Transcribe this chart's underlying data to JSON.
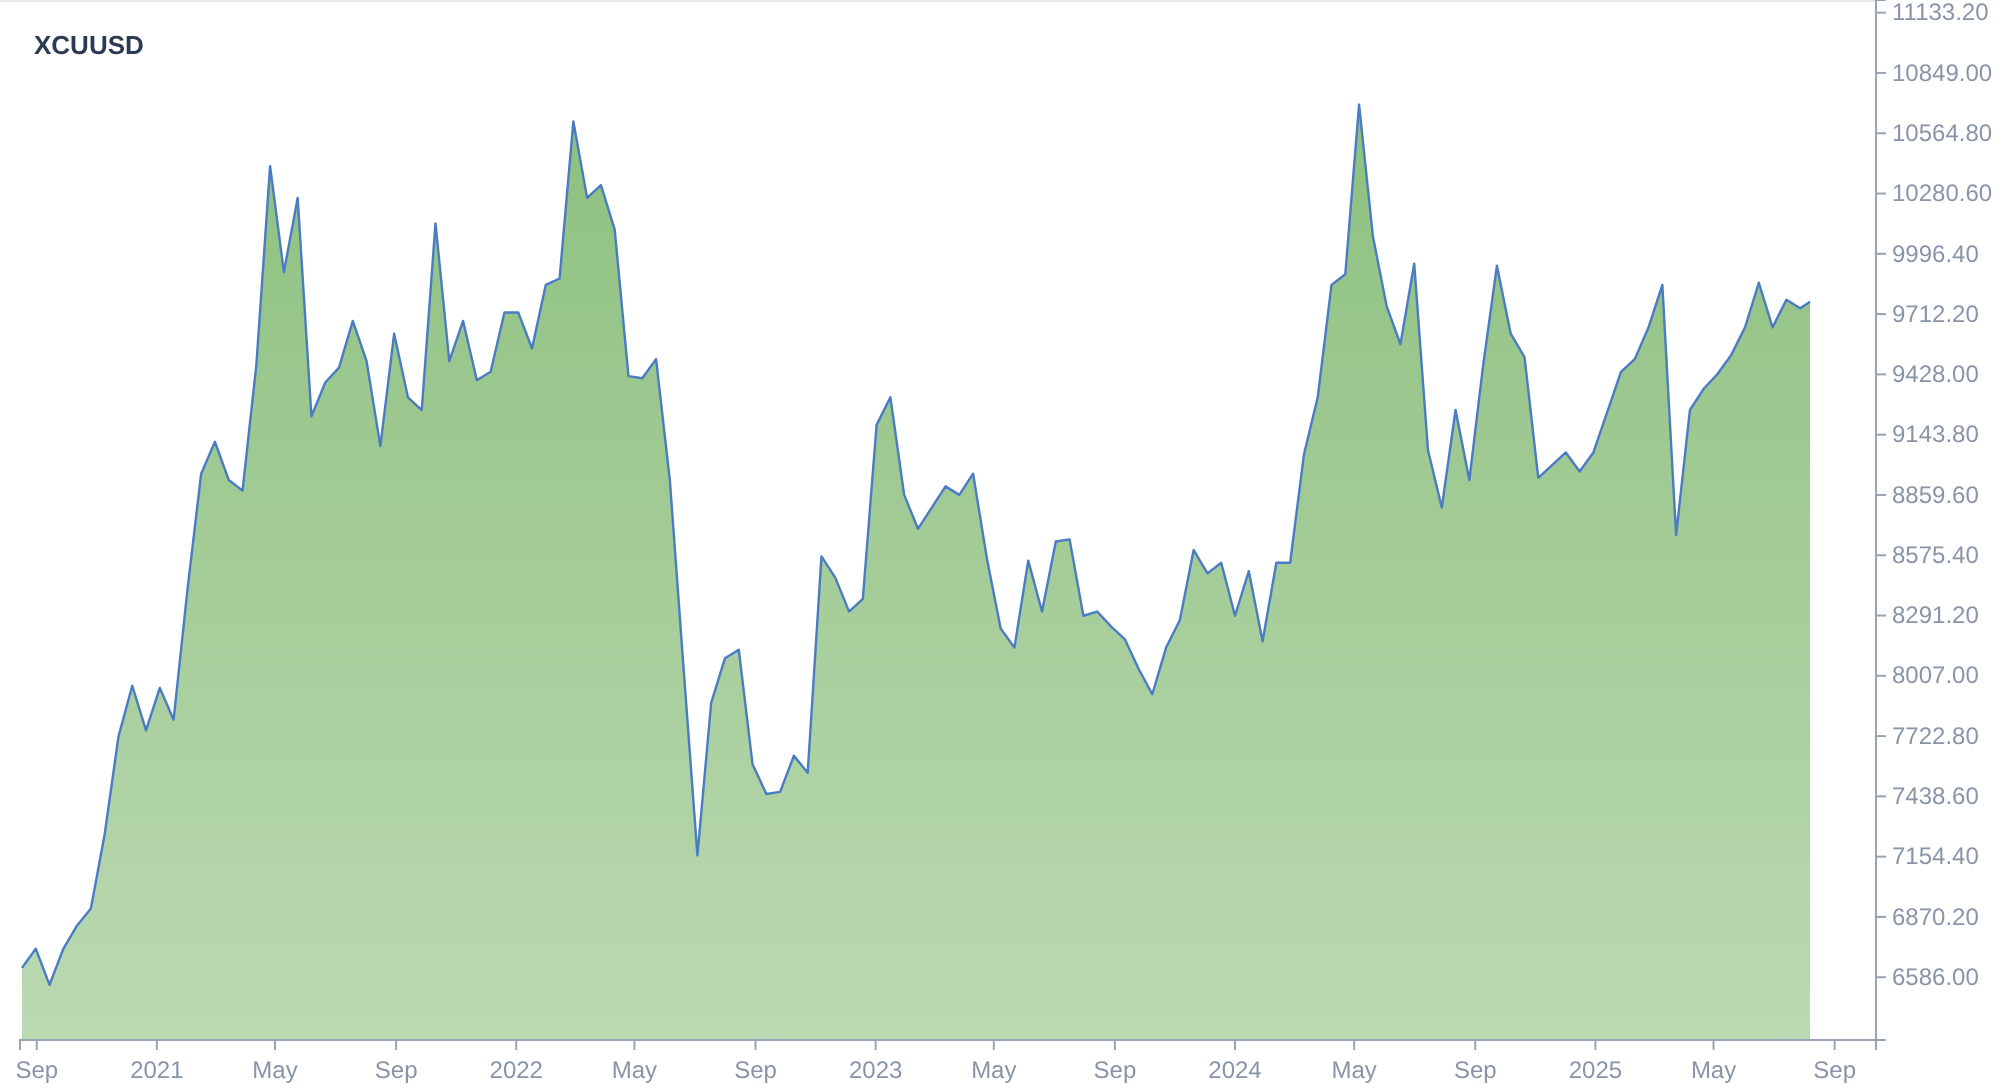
{
  "chart_data": {
    "type": "area",
    "title": "XCUUSD",
    "x": [
      "2020-08-17",
      "2020-08-31",
      "2020-09-14",
      "2020-09-28",
      "2020-10-12",
      "2020-10-26",
      "2020-11-09",
      "2020-11-23",
      "2020-12-07",
      "2020-12-21",
      "2021-01-04",
      "2021-01-18",
      "2021-02-01",
      "2021-02-15",
      "2021-03-01",
      "2021-03-15",
      "2021-03-29",
      "2021-04-12",
      "2021-04-26",
      "2021-05-10",
      "2021-05-24",
      "2021-06-07",
      "2021-06-21",
      "2021-07-05",
      "2021-07-19",
      "2021-08-02",
      "2021-08-16",
      "2021-08-30",
      "2021-09-13",
      "2021-09-27",
      "2021-10-11",
      "2021-10-25",
      "2021-11-08",
      "2021-11-22",
      "2021-12-06",
      "2021-12-20",
      "2022-01-03",
      "2022-01-17",
      "2022-01-31",
      "2022-02-14",
      "2022-02-28",
      "2022-03-14",
      "2022-03-28",
      "2022-04-11",
      "2022-04-25",
      "2022-05-09",
      "2022-05-23",
      "2022-06-06",
      "2022-06-20",
      "2022-07-04",
      "2022-07-18",
      "2022-08-01",
      "2022-08-15",
      "2022-08-29",
      "2022-09-12",
      "2022-09-26",
      "2022-10-10",
      "2022-10-24",
      "2022-11-07",
      "2022-11-21",
      "2022-12-05",
      "2022-12-19",
      "2023-01-02",
      "2023-01-16",
      "2023-01-30",
      "2023-02-13",
      "2023-02-27",
      "2023-03-13",
      "2023-03-27",
      "2023-04-10",
      "2023-04-24",
      "2023-05-08",
      "2023-05-22",
      "2023-06-05",
      "2023-06-19",
      "2023-07-03",
      "2023-07-17",
      "2023-07-31",
      "2023-08-14",
      "2023-08-28",
      "2023-09-11",
      "2023-09-25",
      "2023-10-09",
      "2023-10-23",
      "2023-11-06",
      "2023-11-20",
      "2023-12-04",
      "2023-12-18",
      "2024-01-01",
      "2024-01-15",
      "2024-01-29",
      "2024-02-12",
      "2024-02-26",
      "2024-03-11",
      "2024-03-25",
      "2024-04-08",
      "2024-04-22",
      "2024-05-06",
      "2024-05-20",
      "2024-06-03",
      "2024-06-17",
      "2024-07-01",
      "2024-07-15",
      "2024-07-29",
      "2024-08-12",
      "2024-08-26",
      "2024-09-09",
      "2024-09-23",
      "2024-10-07",
      "2024-10-21",
      "2024-11-04",
      "2024-11-18",
      "2024-12-02",
      "2024-12-16",
      "2024-12-30",
      "2025-01-13",
      "2025-01-27",
      "2025-02-10",
      "2025-02-24",
      "2025-03-10",
      "2025-03-24",
      "2025-04-07",
      "2025-04-21",
      "2025-05-05",
      "2025-05-19",
      "2025-06-02",
      "2025-06-16",
      "2025-06-30",
      "2025-07-14",
      "2025-07-28",
      "2025-08-07"
    ],
    "series": [
      {
        "color": "#8dc07e",
        "values": [
          6630,
          6720,
          6550,
          6720,
          6830,
          6910,
          7260,
          7720,
          7960,
          7750,
          7950,
          7800,
          8410,
          8960,
          9110,
          8930,
          8880,
          9470,
          10410,
          9910,
          10260,
          9230,
          9390,
          9460,
          9680,
          9490,
          9090,
          9620,
          9320,
          9260,
          10140,
          9490,
          9680,
          9400,
          9440,
          9720,
          9720,
          9550,
          9850,
          9880,
          10620,
          10260,
          10320,
          10110,
          9420,
          9410,
          9500,
          8930,
          8040,
          7160,
          7880,
          8090,
          8130,
          7590,
          7450,
          7460,
          7630,
          7550,
          8570,
          8470,
          8310,
          8370,
          9190,
          9320,
          8860,
          8700,
          8800,
          8900,
          8860,
          8960,
          8560,
          8230,
          8140,
          8550,
          8310,
          8640,
          8650,
          8290,
          8310,
          8240,
          8180,
          8040,
          7920,
          8140,
          8270,
          8600,
          8490,
          8540,
          8290,
          8500,
          8170,
          8540,
          8540,
          9050,
          9320,
          9850,
          9900,
          10700,
          10080,
          9750,
          9570,
          9950,
          9070,
          8800,
          9260,
          8930,
          9470,
          9940,
          9620,
          9510,
          8940,
          9000,
          9060,
          8970,
          9060,
          9250,
          9440,
          9500,
          9650,
          9850,
          8670,
          9260,
          9360,
          9430,
          9520,
          9650,
          9860,
          9650,
          9780,
          9740,
          9770
        ]
      }
    ],
    "xlim": [
      "2020-08-15",
      "2025-10-13"
    ],
    "xticks": [
      {
        "value": "2020-09-01",
        "label": "Sep"
      },
      {
        "value": "2021-01-01",
        "label": "2021"
      },
      {
        "value": "2021-05-01",
        "label": "May"
      },
      {
        "value": "2021-09-01",
        "label": "Sep"
      },
      {
        "value": "2022-01-01",
        "label": "2022"
      },
      {
        "value": "2022-05-01",
        "label": "May"
      },
      {
        "value": "2022-09-01",
        "label": "Sep"
      },
      {
        "value": "2023-01-01",
        "label": "2023"
      },
      {
        "value": "2023-05-01",
        "label": "May"
      },
      {
        "value": "2023-09-01",
        "label": "Sep"
      },
      {
        "value": "2024-01-01",
        "label": "2024"
      },
      {
        "value": "2024-05-01",
        "label": "May"
      },
      {
        "value": "2024-09-01",
        "label": "Sep"
      },
      {
        "value": "2025-01-01",
        "label": "2025"
      },
      {
        "value": "2025-05-01",
        "label": "May"
      },
      {
        "value": "2025-09-01",
        "label": "Sep"
      }
    ],
    "ylim": [
      6290,
      11193
    ],
    "yticks": [
      {
        "value": 6586,
        "label": "6586.00"
      },
      {
        "value": 6870.2,
        "label": "6870.20"
      },
      {
        "value": 7154.4,
        "label": "7154.40"
      },
      {
        "value": 7438.6,
        "label": "7438.60"
      },
      {
        "value": 7722.8,
        "label": "7722.80"
      },
      {
        "value": 8007,
        "label": "8007.00"
      },
      {
        "value": 8291.2,
        "label": "8291.20"
      },
      {
        "value": 8575.4,
        "label": "8575.40"
      },
      {
        "value": 8859.6,
        "label": "8859.60"
      },
      {
        "value": 9143.8,
        "label": "9143.80"
      },
      {
        "value": 9428,
        "label": "9428.00"
      },
      {
        "value": 9712.2,
        "label": "9712.20"
      },
      {
        "value": 9996.4,
        "label": "9996.40"
      },
      {
        "value": 10280.6,
        "label": "10280.60"
      },
      {
        "value": 10564.8,
        "label": "10564.80"
      },
      {
        "value": 10849,
        "label": "10849.00"
      },
      {
        "value": 11133.2,
        "label": "11133.20"
      }
    ],
    "grid": false
  }
}
